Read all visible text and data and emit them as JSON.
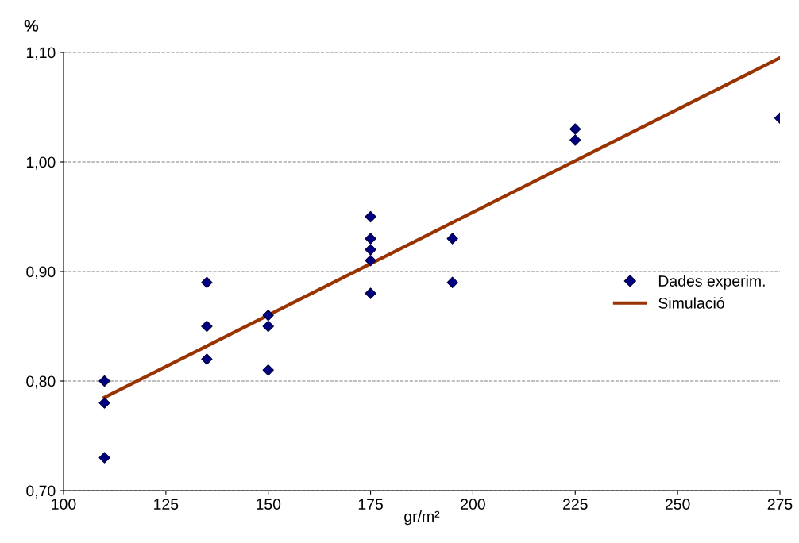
{
  "chart_data": {
    "type": "scatter",
    "xlabel": "gr/m²",
    "ylabel": "%",
    "series": [
      {
        "name": "Dades experim.",
        "color": "#000080",
        "marker": "diamond",
        "x": [
          110,
          110,
          110,
          135,
          135,
          135,
          150,
          150,
          150,
          175,
          175,
          175,
          175,
          175,
          195,
          195,
          225,
          225,
          275
        ],
        "values": [
          0.8,
          0.78,
          0.73,
          0.89,
          0.85,
          0.82,
          0.86,
          0.85,
          0.81,
          0.95,
          0.93,
          0.92,
          0.91,
          0.88,
          0.93,
          0.89,
          1.03,
          1.02,
          1.04
        ]
      },
      {
        "name": "Simulació",
        "type": "line",
        "color": "#993300",
        "marker": "none",
        "line_style": "solid",
        "x": [
          110,
          275
        ],
        "values": [
          0.785,
          1.095
        ]
      }
    ],
    "xlim": [
      100,
      275
    ],
    "xticks": [
      100,
      125,
      150,
      175,
      200,
      225,
      250,
      275
    ],
    "ylim": [
      0.7,
      1.1
    ],
    "yticks": [
      {
        "value": 0.7,
        "label": "0,70"
      },
      {
        "value": 0.8,
        "label": "0,80"
      },
      {
        "value": 0.9,
        "label": "0,90"
      },
      {
        "value": 1.0,
        "label": "1,00"
      },
      {
        "value": 1.1,
        "label": "1,10"
      }
    ],
    "grid": "y",
    "legend": "center right"
  }
}
